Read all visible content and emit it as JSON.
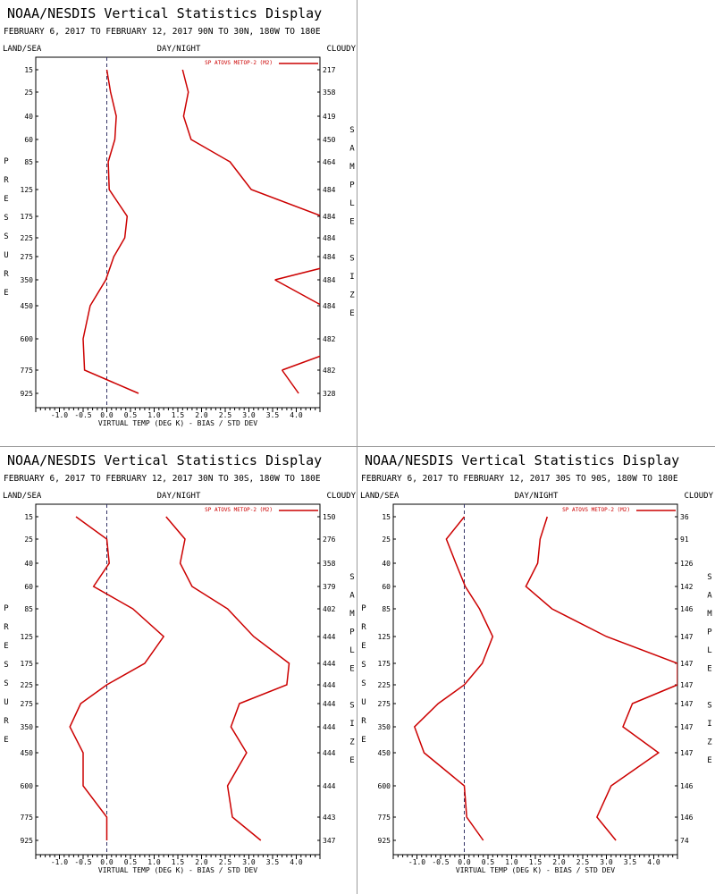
{
  "header": {
    "title": "NOAA/NESDIS Vertical Statistics Display",
    "left_label": "LAND/SEA",
    "mid_label": "DAY/NIGHT",
    "right_label": "CLOUDY",
    "pressure_axis_label": "PRESSURE",
    "sample_axis_label": "SAMPLE SIZE",
    "xlabel": "VIRTUAL TEMP (DEG K) - BIAS / STD DEV",
    "legend": "SP ATOVS METOP-2 (M2)"
  },
  "colors": {
    "series": "#cc0000",
    "frame": "#000000",
    "zero_line": "#333366"
  },
  "chart_data": [
    {
      "type": "line",
      "subtitle": "FEBRUARY 6, 2017 TO FEBRUARY 12, 2017 90N TO 30N, 180W TO 180E",
      "pressure_levels": [
        "15",
        "25",
        "40",
        "60",
        "85",
        "125",
        "175",
        "225",
        "275",
        "350",
        "450",
        "600",
        "775",
        "925"
      ],
      "sample_size": [
        "217",
        "358",
        "419",
        "450",
        "464",
        "484",
        "484",
        "484",
        "484",
        "484",
        "484",
        "482",
        "482",
        "328"
      ],
      "xticks": [
        "-1.0",
        "-0.5",
        "0.0",
        "0.5",
        "1.0",
        "1.5",
        "2.0",
        "2.5",
        "3.0",
        "3.5",
        "4.0"
      ],
      "xlim": [
        -1.5,
        4.5
      ],
      "series": [
        {
          "name": "BIAS",
          "values": [
            0.0,
            0.08,
            0.2,
            0.17,
            0.03,
            0.05,
            0.43,
            0.38,
            0.15,
            -0.02,
            -0.35,
            -0.5,
            -0.47,
            0.67
          ]
        },
        {
          "name": "STD DEV",
          "values": [
            1.6,
            1.72,
            1.62,
            1.78,
            2.6,
            3.05,
            4.55,
            null,
            null,
            3.55,
            4.55,
            null,
            3.7,
            4.05
          ]
        }
      ]
    },
    {
      "type": "line",
      "subtitle": "FEBRUARY 6, 2017 TO FEBRUARY 12, 2017 30N TO 30S, 180W TO 180E",
      "pressure_levels": [
        "15",
        "25",
        "40",
        "60",
        "85",
        "125",
        "175",
        "225",
        "275",
        "350",
        "450",
        "600",
        "775",
        "925"
      ],
      "sample_size": [
        "150",
        "276",
        "358",
        "379",
        "402",
        "444",
        "444",
        "444",
        "444",
        "444",
        "444",
        "444",
        "443",
        "347"
      ],
      "xticks": [
        "-1.0",
        "-0.5",
        "0.0",
        "0.5",
        "1.0",
        "1.5",
        "2.0",
        "2.5",
        "3.0",
        "3.5",
        "4.0"
      ],
      "xlim": [
        -1.5,
        4.5
      ],
      "series": [
        {
          "name": "BIAS",
          "values": [
            -0.65,
            0.0,
            0.05,
            -0.28,
            0.55,
            1.2,
            0.8,
            0.0,
            -0.55,
            -0.78,
            -0.5,
            -0.5,
            0.0,
            0.0
          ]
        },
        {
          "name": "STD DEV",
          "values": [
            1.25,
            1.65,
            1.55,
            1.8,
            2.55,
            3.1,
            3.85,
            3.8,
            2.8,
            2.62,
            2.95,
            2.55,
            2.65,
            3.25
          ]
        }
      ]
    },
    {
      "type": "line",
      "subtitle": "FEBRUARY 6, 2017 TO FEBRUARY 12, 2017 30S TO 90S, 180W TO 180E",
      "pressure_levels": [
        "15",
        "25",
        "40",
        "60",
        "85",
        "125",
        "175",
        "225",
        "275",
        "350",
        "450",
        "600",
        "775",
        "925"
      ],
      "sample_size": [
        "36",
        "91",
        "126",
        "142",
        "146",
        "147",
        "147",
        "147",
        "147",
        "147",
        "147",
        "146",
        "146",
        "74"
      ],
      "xticks": [
        "-1.0",
        "-0.5",
        "0.0",
        "0.5",
        "1.0",
        "1.5",
        "2.0",
        "2.5",
        "3.0",
        "3.5",
        "4.0"
      ],
      "xlim": [
        -1.5,
        4.5
      ],
      "series": [
        {
          "name": "BIAS",
          "values": [
            0.0,
            -0.38,
            -0.18,
            0.02,
            0.32,
            0.6,
            0.38,
            0.0,
            -0.55,
            -1.05,
            -0.85,
            0.0,
            0.05,
            0.4
          ]
        },
        {
          "name": "STD DEV",
          "values": [
            1.75,
            1.6,
            1.55,
            1.3,
            1.85,
            3.0,
            4.5,
            4.5,
            3.55,
            3.35,
            4.1,
            3.1,
            2.8,
            3.2
          ]
        }
      ]
    }
  ]
}
